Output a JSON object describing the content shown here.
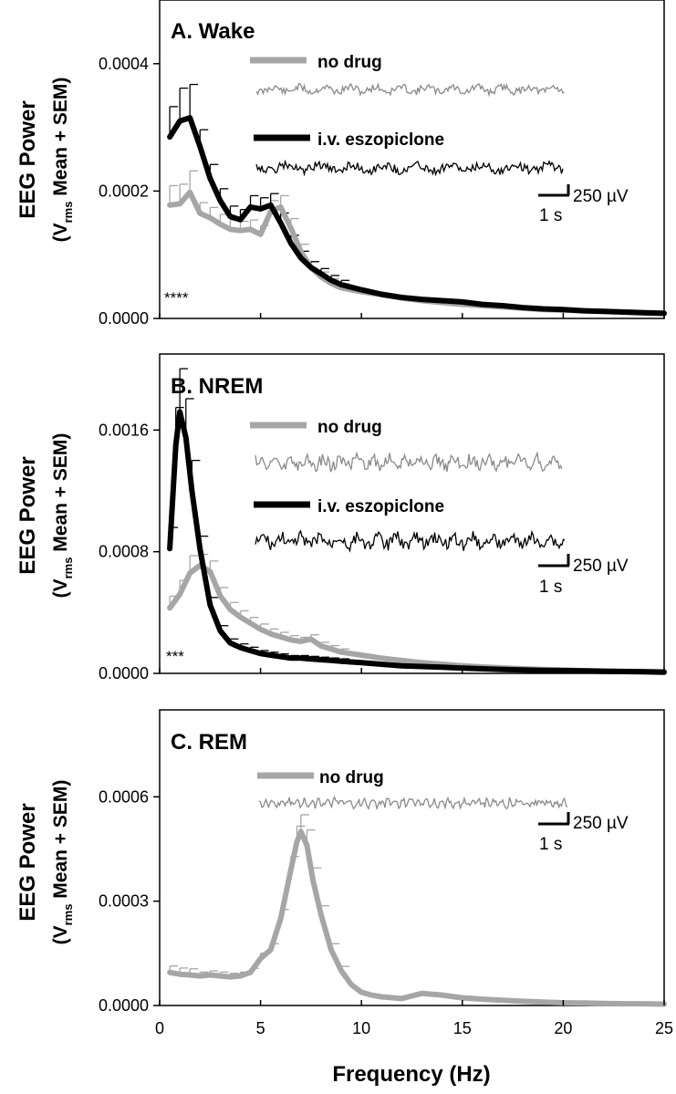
{
  "colors": {
    "no_drug": "#a6a6a6",
    "eszopiclone": "#000000"
  },
  "xaxis": {
    "label": "Frequency (Hz)",
    "range": [
      0,
      25
    ],
    "ticks": [
      "0",
      "5",
      "10",
      "15",
      "20",
      "25"
    ]
  },
  "chart_data": [
    {
      "type": "line",
      "title": "A. Wake",
      "ylabel": "EEG Power",
      "ylabel_line2_prefix": "(V",
      "ylabel_line2_sub": "rms",
      "ylabel_line2_suffix": " Mean + SEM)",
      "ylim": [
        0,
        0.0005
      ],
      "yticks": [
        "0.0000",
        "0.0002",
        "0.0004"
      ],
      "ytick_values": [
        0,
        0.0002,
        0.0004
      ],
      "significance": "****",
      "scale_bar": {
        "amplitude": "250 µV",
        "time": "1 s"
      },
      "series": [
        {
          "name": "no drug",
          "x": [
            0.5,
            1.0,
            1.5,
            2.0,
            2.5,
            3.0,
            3.5,
            4.0,
            4.5,
            5.0,
            5.5,
            6.0,
            6.5,
            7.0,
            7.5,
            8.0,
            8.5,
            9.0,
            10,
            11,
            12,
            13,
            14,
            15,
            16,
            17,
            18,
            19,
            20,
            21,
            22,
            23,
            24,
            25
          ],
          "y": [
            0.000178,
            0.00018,
            0.000198,
            0.000165,
            0.000158,
            0.000148,
            0.00014,
            0.000138,
            0.00014,
            0.000132,
            0.000168,
            0.000175,
            0.000142,
            0.000105,
            8e-05,
            6.5e-05,
            5.5e-05,
            4.8e-05,
            4.2e-05,
            3.7e-05,
            3.2e-05,
            2.8e-05,
            2.5e-05,
            2.2e-05,
            2e-05,
            1.8e-05,
            1.6e-05,
            1.4e-05,
            1.3e-05,
            1.2e-05,
            1.1e-05,
            1e-05,
            9e-06,
            8e-06
          ]
        },
        {
          "name": "i.v. eszopiclone",
          "x": [
            0.5,
            1.0,
            1.5,
            2.0,
            2.5,
            3.0,
            3.5,
            4.0,
            4.5,
            5.0,
            5.5,
            6.0,
            6.5,
            7.0,
            7.5,
            8.0,
            8.5,
            9.0,
            10,
            11,
            12,
            13,
            14,
            15,
            16,
            17,
            18,
            19,
            20,
            21,
            22,
            23,
            24,
            25
          ],
          "y": [
            0.000285,
            0.00031,
            0.000315,
            0.00027,
            0.00022,
            0.000185,
            0.00016,
            0.000155,
            0.000175,
            0.000172,
            0.000178,
            0.00015,
            0.000118,
            9.5e-05,
            8e-05,
            7e-05,
            6e-05,
            5.3e-05,
            4.5e-05,
            3.8e-05,
            3.3e-05,
            3e-05,
            2.8e-05,
            2.6e-05,
            2.2e-05,
            2e-05,
            1.7e-05,
            1.5e-05,
            1.4e-05,
            1.2e-05,
            1.1e-05,
            1e-05,
            9e-06,
            8e-06
          ]
        }
      ]
    },
    {
      "type": "line",
      "title": "B. NREM",
      "ylabel": "EEG Power",
      "ylabel_line2_prefix": "(V",
      "ylabel_line2_sub": "rms",
      "ylabel_line2_suffix": " Mean + SEM)",
      "ylim": [
        0,
        0.0021
      ],
      "yticks": [
        "0.0000",
        "0.0008",
        "0.0016"
      ],
      "ytick_values": [
        0,
        0.0008,
        0.0016
      ],
      "significance": "***",
      "scale_bar": {
        "amplitude": "250 µV",
        "time": "1 s"
      },
      "series": [
        {
          "name": "no drug",
          "x": [
            0.5,
            1.0,
            1.5,
            2.0,
            2.5,
            3.0,
            3.5,
            4.0,
            4.5,
            5.0,
            5.5,
            6.0,
            6.5,
            7.0,
            7.5,
            8.0,
            8.5,
            9.0,
            10,
            11,
            12,
            13,
            14,
            15,
            16,
            17,
            18,
            19,
            20,
            21,
            22,
            23,
            24,
            25
          ],
          "y": [
            0.00043,
            0.00052,
            0.00066,
            0.00071,
            0.00067,
            0.00051,
            0.00042,
            0.00037,
            0.00033,
            0.00029,
            0.00026,
            0.00024,
            0.00022,
            0.00021,
            0.000225,
            0.00018,
            0.00016,
            0.00014,
            0.00012,
            0.0001,
            8.5e-05,
            7e-05,
            6e-05,
            5e-05,
            4.2e-05,
            3.6e-05,
            3e-05,
            2.6e-05,
            2.2e-05,
            1.8e-05,
            1.6e-05,
            1.4e-05,
            1.2e-05,
            1e-05
          ]
        },
        {
          "name": "i.v. eszopiclone",
          "x": [
            0.5,
            0.8,
            1.0,
            1.3,
            1.6,
            2.0,
            2.5,
            3.0,
            3.5,
            4.0,
            4.5,
            5.0,
            5.5,
            6.0,
            6.5,
            7.0,
            7.5,
            8.0,
            8.5,
            9.0,
            10,
            11,
            12,
            13,
            14,
            15,
            16,
            17,
            18,
            19,
            20,
            21,
            22,
            23,
            24,
            25
          ],
          "y": [
            0.00082,
            0.0015,
            0.00172,
            0.00155,
            0.0012,
            0.00082,
            0.00045,
            0.00028,
            0.0002,
            0.00017,
            0.00015,
            0.00013,
            0.00012,
            0.00011,
            0.0001,
            0.0001,
            9.5e-05,
            9e-05,
            8.5e-05,
            8e-05,
            7e-05,
            6e-05,
            5e-05,
            4.5e-05,
            4e-05,
            3.5e-05,
            3e-05,
            2.5e-05,
            2.2e-05,
            2e-05,
            1.8e-05,
            1.6e-05,
            1.4e-05,
            1.2e-05,
            1e-05,
            8e-06
          ]
        }
      ]
    },
    {
      "type": "line",
      "title": "C. REM",
      "ylabel": "EEG Power",
      "ylabel_line2_prefix": "(V",
      "ylabel_line2_sub": "rms",
      "ylabel_line2_suffix": " Mean + SEM)",
      "ylim": [
        0,
        0.00085
      ],
      "yticks": [
        "0.0000",
        "0.0003",
        "0.0006"
      ],
      "ytick_values": [
        0,
        0.0003,
        0.0006
      ],
      "significance": "",
      "scale_bar": {
        "amplitude": "250 µV",
        "time": "1 s"
      },
      "series": [
        {
          "name": "no drug",
          "x": [
            0.5,
            1.0,
            1.5,
            2.0,
            2.5,
            3.0,
            3.5,
            4.0,
            4.5,
            5.0,
            5.5,
            6.0,
            6.5,
            6.8,
            7.0,
            7.3,
            7.6,
            8.0,
            8.5,
            9.0,
            9.5,
            10,
            10.5,
            11,
            12,
            13,
            14,
            15,
            16,
            17,
            18,
            19,
            20,
            21,
            22,
            23,
            24,
            25
          ],
          "y": [
            9.5e-05,
            9e-05,
            8.8e-05,
            8.5e-05,
            8.8e-05,
            8.5e-05,
            8.2e-05,
            8.5e-05,
            9.5e-05,
            0.000135,
            0.00016,
            0.00025,
            0.00039,
            0.00047,
            0.0005,
            0.00046,
            0.00036,
            0.00026,
            0.00016,
            0.0001,
            6e-05,
            3.8e-05,
            3e-05,
            2.5e-05,
            2e-05,
            3.5e-05,
            3e-05,
            2.2e-05,
            1.8e-05,
            1.5e-05,
            1.2e-05,
            1e-05,
            8e-06,
            7e-06,
            6e-06,
            5e-06,
            5e-06,
            4e-06
          ]
        }
      ]
    }
  ]
}
